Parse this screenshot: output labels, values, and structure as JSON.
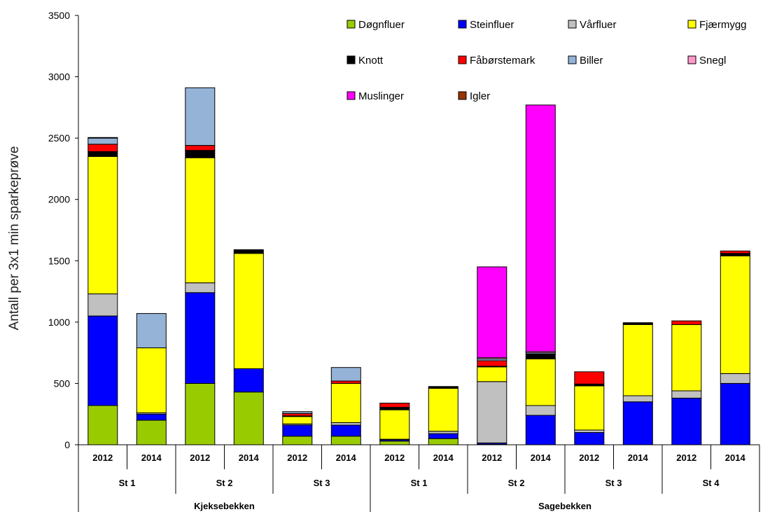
{
  "chart_data": {
    "type": "bar",
    "stacked": true,
    "ylabel": "Antall per 3x1 min sparkeprøve",
    "xlabel": "",
    "title": "",
    "ylim": [
      0,
      3500
    ],
    "yticks": [
      0,
      500,
      1000,
      1500,
      2000,
      2500,
      3000,
      3500
    ],
    "legend_position": "top-right",
    "grid": false,
    "groups": [
      {
        "name": "Kjeksebekken",
        "stations": [
          {
            "name": "St 1",
            "years": [
              "2012",
              "2014"
            ]
          },
          {
            "name": "St 2",
            "years": [
              "2012",
              "2014"
            ]
          },
          {
            "name": "St 3",
            "years": [
              "2012",
              "2014"
            ]
          }
        ]
      },
      {
        "name": "Sagebekken",
        "stations": [
          {
            "name": "St 1",
            "years": [
              "2012",
              "2014"
            ]
          },
          {
            "name": "St 2",
            "years": [
              "2012",
              "2014"
            ]
          },
          {
            "name": "St 3",
            "years": [
              "2012",
              "2014"
            ]
          },
          {
            "name": "St 4",
            "years": [
              "2012",
              "2014"
            ]
          }
        ]
      }
    ],
    "categories": [
      "2012",
      "2014",
      "2012",
      "2014",
      "2012",
      "2014",
      "2012",
      "2014",
      "2012",
      "2014",
      "2012",
      "2014",
      "2012",
      "2014"
    ],
    "series": [
      {
        "name": "Døgnfluer",
        "color": "#99cc00",
        "values": [
          320,
          200,
          500,
          430,
          70,
          70,
          30,
          50,
          5,
          0,
          0,
          0,
          0,
          0
        ]
      },
      {
        "name": "Steinfluer",
        "color": "#0000ff",
        "values": [
          730,
          50,
          740,
          190,
          90,
          90,
          10,
          40,
          10,
          240,
          100,
          350,
          380,
          500
        ]
      },
      {
        "name": "Vårfluer",
        "color": "#c0c0c0",
        "values": [
          180,
          10,
          80,
          0,
          10,
          20,
          5,
          20,
          500,
          80,
          20,
          50,
          60,
          80
        ]
      },
      {
        "name": "Fjærmygg",
        "color": "#ffff00",
        "values": [
          1120,
          530,
          1020,
          940,
          60,
          320,
          240,
          350,
          120,
          380,
          360,
          580,
          540,
          960
        ]
      },
      {
        "name": "Knott",
        "color": "#000000",
        "values": [
          40,
          0,
          60,
          30,
          5,
          0,
          20,
          15,
          5,
          40,
          15,
          15,
          0,
          20
        ]
      },
      {
        "name": "Fåbørstemark",
        "color": "#ff0000",
        "values": [
          60,
          0,
          40,
          0,
          20,
          20,
          35,
          0,
          45,
          0,
          100,
          0,
          30,
          20
        ]
      },
      {
        "name": "Biller",
        "color": "#95b3d7",
        "values": [
          50,
          280,
          470,
          0,
          15,
          110,
          0,
          0,
          15,
          10,
          0,
          0,
          0,
          0
        ]
      },
      {
        "name": "Snegl",
        "color": "#ff99cc",
        "values": [
          5,
          0,
          0,
          0,
          0,
          0,
          0,
          0,
          10,
          10,
          0,
          0,
          0,
          0
        ]
      },
      {
        "name": "Muslinger",
        "color": "#ff00ff",
        "values": [
          0,
          0,
          0,
          0,
          0,
          0,
          0,
          0,
          740,
          2010,
          0,
          0,
          0,
          0
        ]
      },
      {
        "name": "Igler",
        "color": "#993300",
        "values": [
          0,
          0,
          0,
          0,
          0,
          0,
          0,
          0,
          0,
          0,
          0,
          0,
          0,
          0
        ]
      }
    ]
  }
}
